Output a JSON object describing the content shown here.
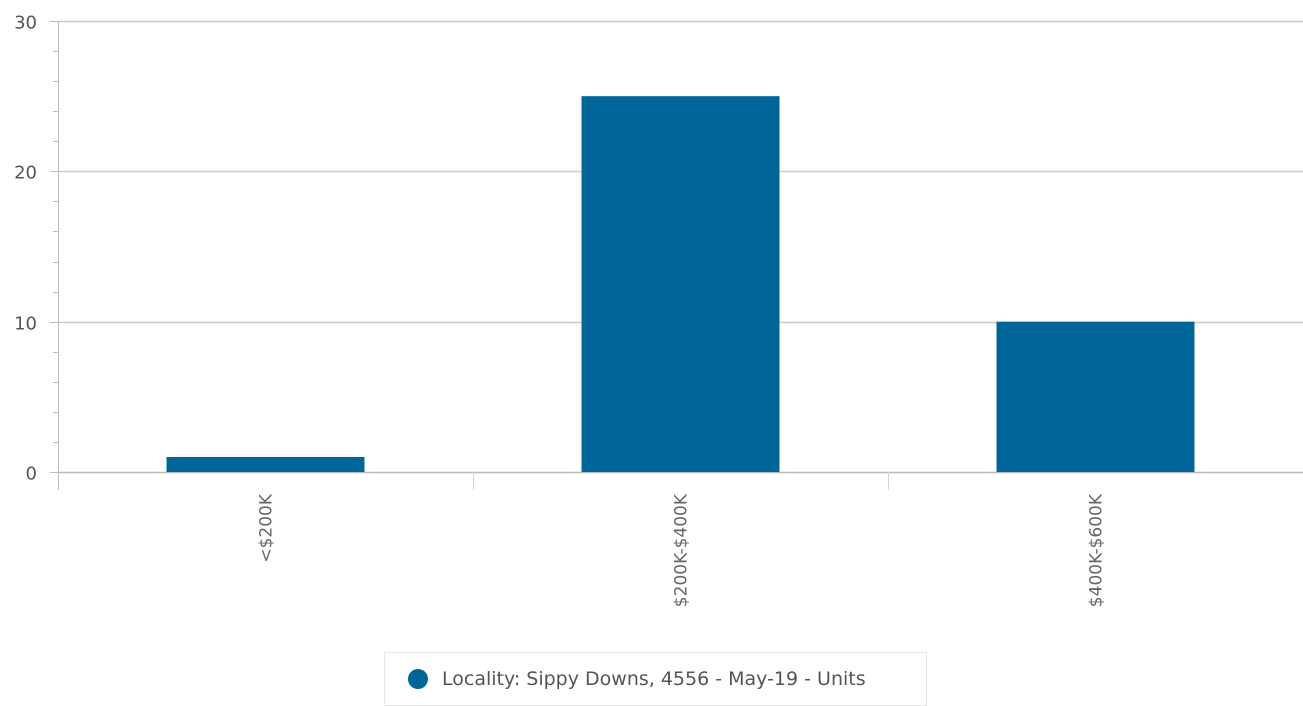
{
  "chart_data": {
    "type": "bar",
    "categories": [
      "<$200K",
      "$200K-$400K",
      "$400K-$600K"
    ],
    "series": [
      {
        "name": "Locality: Sippy Downs, 4556 - May-19 - Units",
        "values": [
          1,
          25,
          10
        ]
      }
    ],
    "ylim": [
      0,
      30
    ],
    "yticks": [
      0,
      10,
      20,
      30
    ],
    "grid": true,
    "legend_position": "bottom-center",
    "title": "",
    "xlabel": "",
    "ylabel": ""
  },
  "colors": {
    "series": "#006699",
    "grid": "#cccccc",
    "axis": "#bbbbbb"
  }
}
